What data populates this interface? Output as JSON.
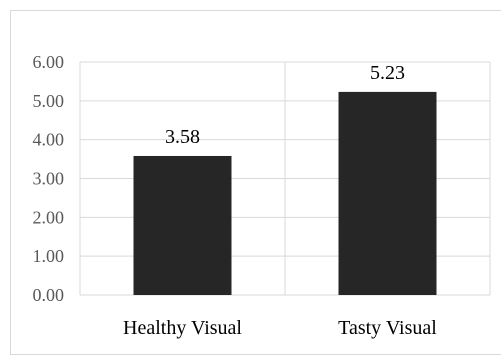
{
  "chart_data": {
    "type": "bar",
    "categories": [
      "Healthy Visual",
      "Tasty Visual"
    ],
    "values": [
      3.58,
      5.23
    ],
    "data_labels": [
      "3.58",
      "5.23"
    ],
    "title": "",
    "xlabel": "",
    "ylabel": "",
    "ylim": [
      0,
      6
    ],
    "y_ticks": [
      0,
      1,
      2,
      3,
      4,
      5,
      6
    ],
    "y_tick_labels": [
      "0.00",
      "1.00",
      "2.00",
      "3.00",
      "4.00",
      "5.00",
      "6.00"
    ],
    "grid": "horizontal and vertical",
    "legend": "none",
    "bar_color": "#262626",
    "grid_color": "#d9d9d9"
  }
}
